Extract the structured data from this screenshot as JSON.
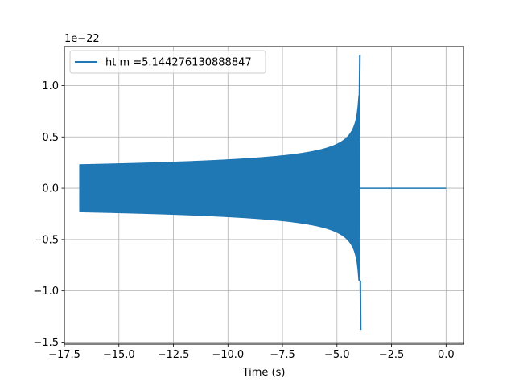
{
  "chart_data": {
    "type": "line",
    "xlabel": "Time (s)",
    "ylabel": "",
    "y_offset_text": "1e−22",
    "y_scale_factor": 1e-22,
    "xlim": [
      -17.5,
      0.8
    ],
    "ylim": [
      -1.52,
      1.38
    ],
    "grid": true,
    "legend_position": "upper-left",
    "x_ticks": [
      -17.5,
      -15.0,
      -12.5,
      -10.0,
      -7.5,
      -5.0,
      -2.5,
      0.0
    ],
    "x_tick_labels": [
      "−17.5",
      "−15.0",
      "−12.5",
      "−10.0",
      "−7.5",
      "−5.0",
      "−2.5",
      "0.0"
    ],
    "y_ticks": [
      -1.5,
      -1.0,
      -0.5,
      0.0,
      0.5,
      1.0
    ],
    "y_tick_labels": [
      "−1.5",
      "−1.0",
      "−0.5",
      "0.0",
      "0.5",
      "1.0"
    ],
    "series": [
      {
        "name": "ht m =5.144276130888847",
        "color": "#1f77b4",
        "waveform": {
          "start_time": -16.8,
          "merger_time": -3.95,
          "end_time": 0.0,
          "initial_amplitude": 0.23,
          "peak_positive": 1.3,
          "peak_negative": -1.38
        }
      }
    ]
  }
}
